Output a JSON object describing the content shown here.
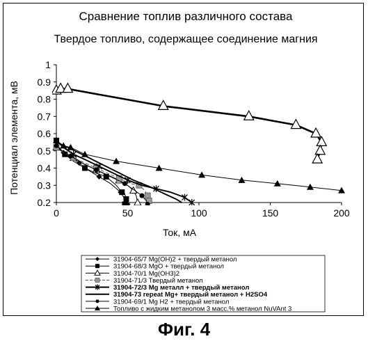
{
  "figure_caption": "Фиг. 4",
  "chart_data": {
    "type": "line",
    "title": "Сравнение топлив различного состава",
    "subtitle": "Твердое топливо, содержащее соединение магния",
    "xlabel": "Ток, мА",
    "ylabel": "Потенциал элемента, мВ",
    "xlim": [
      0,
      200
    ],
    "ylim": [
      0.2,
      1
    ],
    "x_ticks": [
      "0",
      "50",
      "100",
      "150",
      "200"
    ],
    "y_ticks": [
      "0.2",
      "0.3",
      "0.4",
      "0.5",
      "0.6",
      "0.7",
      "0.8",
      "0.9",
      "1"
    ],
    "grid": false,
    "legend_position": "bottom",
    "series": [
      {
        "name": "31904-65/7  Mg(OH)2 + твердый метанол",
        "marker": "diamond",
        "color": "#000000",
        "line_style": "solid",
        "bold": false,
        "points": [
          [
            0,
            0.53
          ],
          [
            2,
            0.51
          ],
          [
            5,
            0.49
          ],
          [
            10,
            0.46
          ],
          [
            16,
            0.43
          ],
          [
            22,
            0.39
          ],
          [
            30,
            0.35
          ],
          [
            38,
            0.31
          ],
          [
            45,
            0.26
          ],
          [
            48,
            0.22
          ],
          [
            50,
            0.19
          ]
        ]
      },
      {
        "name": "31904-68/3  MgO + твердый метанол",
        "marker": "square",
        "color": "#000000",
        "line_style": "solid",
        "bold": false,
        "points": [
          [
            0,
            0.56
          ],
          [
            2,
            0.52
          ],
          [
            6,
            0.48
          ],
          [
            12,
            0.44
          ],
          [
            20,
            0.4
          ],
          [
            28,
            0.37
          ],
          [
            35,
            0.35
          ],
          [
            42,
            0.3
          ],
          [
            46,
            0.26
          ],
          [
            48,
            0.25
          ],
          [
            49,
            0.22
          ],
          [
            48,
            0.19
          ]
        ]
      },
      {
        "name": "31904-70/1  Mg(OH3)2",
        "marker": "triangle-open",
        "color": "#000000",
        "line_style": "solid",
        "bold": false,
        "points": [
          [
            0,
            0.52
          ],
          [
            5,
            0.49
          ],
          [
            12,
            0.46
          ],
          [
            20,
            0.42
          ],
          [
            28,
            0.39
          ],
          [
            36,
            0.36
          ],
          [
            44,
            0.33
          ],
          [
            50,
            0.3
          ],
          [
            54,
            0.27
          ],
          [
            56,
            0.24
          ],
          [
            57,
            0.2
          ]
        ]
      },
      {
        "name": "31904-71/3  Твердый метанол",
        "marker": "square-gray",
        "color": "#555555",
        "line_style": "dashed",
        "bold": false,
        "points": [
          [
            0,
            0.52
          ],
          [
            5,
            0.49
          ],
          [
            12,
            0.46
          ],
          [
            20,
            0.43
          ],
          [
            28,
            0.4
          ],
          [
            36,
            0.37
          ],
          [
            44,
            0.34
          ],
          [
            52,
            0.31
          ],
          [
            58,
            0.3
          ],
          [
            62,
            0.27
          ],
          [
            64,
            0.24
          ],
          [
            65,
            0.21
          ]
        ]
      },
      {
        "name": "31904-72/3  Mg металл + твердый метанол",
        "marker": "star",
        "color": "#000000",
        "line_style": "solid",
        "bold": true,
        "points": [
          [
            0,
            0.56
          ],
          [
            5,
            0.52
          ],
          [
            12,
            0.48
          ],
          [
            20,
            0.45
          ],
          [
            30,
            0.41
          ],
          [
            40,
            0.37
          ],
          [
            50,
            0.33
          ],
          [
            60,
            0.3
          ],
          [
            70,
            0.28
          ],
          [
            80,
            0.26
          ],
          [
            90,
            0.23
          ],
          [
            95,
            0.2
          ]
        ]
      },
      {
        "name": "31904-73 repeat Mg+ твердый метанол + H2SO4",
        "marker": "none",
        "color": "#000000",
        "line_style": "solid",
        "bold": true,
        "points": [
          [
            0,
            0.55
          ],
          [
            8,
            0.52
          ],
          [
            18,
            0.48
          ],
          [
            30,
            0.43
          ],
          [
            42,
            0.38
          ],
          [
            54,
            0.33
          ],
          [
            66,
            0.29
          ],
          [
            76,
            0.25
          ],
          [
            84,
            0.22
          ],
          [
            88,
            0.2
          ]
        ]
      },
      {
        "name": "31904-69/1  Mg H2 + твердый метанол",
        "marker": "circle",
        "color": "#000000",
        "line_style": "solid",
        "bold": false,
        "points": [
          [
            0,
            0.53
          ],
          [
            4,
            0.5
          ],
          [
            10,
            0.47
          ],
          [
            18,
            0.43
          ],
          [
            28,
            0.39
          ],
          [
            38,
            0.35
          ],
          [
            48,
            0.31
          ],
          [
            55,
            0.27
          ],
          [
            60,
            0.24
          ],
          [
            63,
            0.21
          ],
          [
            64,
            0.19
          ]
        ]
      },
      {
        "name": "Топливо с жидким метанолом 3 масс.% метанол NuVAnt 3",
        "marker": "triangle",
        "color": "#000000",
        "line_style": "solid",
        "bold": false,
        "points": [
          [
            0,
            0.56
          ],
          [
            5,
            0.53
          ],
          [
            10,
            0.52
          ],
          [
            20,
            0.48
          ],
          [
            42,
            0.44
          ],
          [
            72,
            0.4
          ],
          [
            102,
            0.36
          ],
          [
            130,
            0.33
          ],
          [
            155,
            0.31
          ],
          [
            178,
            0.29
          ],
          [
            200,
            0.27
          ]
        ]
      },
      {
        "name": "",
        "marker": "triangle-open-large",
        "color": "#000000",
        "line_style": "solid",
        "bold": true,
        "points": [
          [
            0,
            0.85
          ],
          [
            3,
            0.86
          ],
          [
            8,
            0.86
          ],
          [
            75,
            0.76
          ],
          [
            135,
            0.7
          ],
          [
            168,
            0.65
          ],
          [
            182,
            0.6
          ],
          [
            186,
            0.55
          ],
          [
            185,
            0.5
          ],
          [
            183,
            0.45
          ]
        ]
      }
    ]
  }
}
